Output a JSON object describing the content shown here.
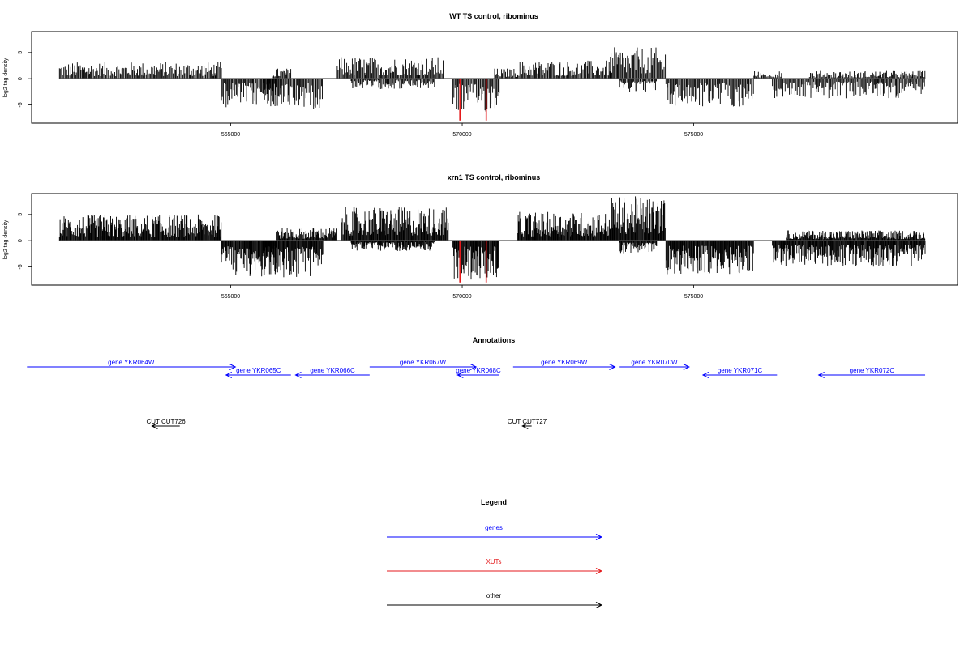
{
  "chart_data": [
    {
      "type": "bar",
      "title": "WT TS control, ribominus",
      "xlabel": "",
      "ylabel": "log2 tag density",
      "xlim": [
        560700,
        580700
      ],
      "ylim": [
        -8.5,
        9
      ],
      "x_ticks": [
        565000,
        570000,
        575000
      ],
      "y_ticks": [
        5,
        0,
        -5
      ],
      "x_tick_labels": [
        "565000",
        "570000",
        "575000"
      ],
      "y_tick_labels": [
        "5",
        "0",
        "-5"
      ],
      "grid": false,
      "signal_profile": [
        {
          "start": 561300,
          "end": 564800,
          "strand": "plus",
          "max": 3.2
        },
        {
          "start": 564800,
          "end": 566000,
          "strand": "minus",
          "max": 5.5
        },
        {
          "start": 565900,
          "end": 566300,
          "strand": "plus",
          "max": 2.0
        },
        {
          "start": 565700,
          "end": 567000,
          "strand": "minus",
          "max": 5.8
        },
        {
          "start": 567300,
          "end": 569600,
          "strand": "plus",
          "max": 4.2
        },
        {
          "start": 567600,
          "end": 569400,
          "strand": "minus",
          "max": 2.0
        },
        {
          "start": 569800,
          "end": 570800,
          "strand": "minus",
          "max": 6.5
        },
        {
          "start": 570700,
          "end": 571200,
          "strand": "plus",
          "max": 2.0
        },
        {
          "start": 571200,
          "end": 573200,
          "strand": "plus",
          "max": 3.5
        },
        {
          "start": 573200,
          "end": 574400,
          "strand": "plus",
          "max": 6.0
        },
        {
          "start": 573400,
          "end": 574200,
          "strand": "minus",
          "max": 2.5
        },
        {
          "start": 574400,
          "end": 576300,
          "strand": "minus",
          "max": 5.5
        },
        {
          "start": 576300,
          "end": 576900,
          "strand": "plus",
          "max": 1.5
        },
        {
          "start": 576700,
          "end": 580000,
          "strand": "minus",
          "max": 3.8
        },
        {
          "start": 577500,
          "end": 580000,
          "strand": "plus",
          "max": 1.5
        }
      ],
      "highlights": [
        {
          "x": 569950,
          "y": -8,
          "color": "#e41a1c"
        },
        {
          "x": 570520,
          "y": -8,
          "color": "#e41a1c"
        }
      ]
    },
    {
      "type": "bar",
      "title": "xrn1 TS control, ribominus",
      "xlabel": "",
      "ylabel": "log2 tag density",
      "xlim": [
        560700,
        580700
      ],
      "ylim": [
        -8.5,
        9
      ],
      "x_ticks": [
        565000,
        570000,
        575000
      ],
      "y_ticks": [
        5,
        0,
        -5
      ],
      "x_tick_labels": [
        "565000",
        "570000",
        "575000"
      ],
      "y_tick_labels": [
        "5",
        "0",
        "-5"
      ],
      "grid": false,
      "signal_profile": [
        {
          "start": 561300,
          "end": 564800,
          "strand": "plus",
          "max": 5.0
        },
        {
          "start": 564800,
          "end": 566000,
          "strand": "minus",
          "max": 7.0
        },
        {
          "start": 565700,
          "end": 567000,
          "strand": "minus",
          "max": 7.2
        },
        {
          "start": 566000,
          "end": 567300,
          "strand": "plus",
          "max": 2.5
        },
        {
          "start": 567400,
          "end": 569700,
          "strand": "plus",
          "max": 6.5
        },
        {
          "start": 567600,
          "end": 569400,
          "strand": "minus",
          "max": 2.0
        },
        {
          "start": 569800,
          "end": 570800,
          "strand": "minus",
          "max": 7.5
        },
        {
          "start": 571200,
          "end": 573200,
          "strand": "plus",
          "max": 5.5
        },
        {
          "start": 573200,
          "end": 574400,
          "strand": "plus",
          "max": 8.5
        },
        {
          "start": 573400,
          "end": 574200,
          "strand": "minus",
          "max": 2.5
        },
        {
          "start": 574400,
          "end": 576300,
          "strand": "minus",
          "max": 6.5
        },
        {
          "start": 576700,
          "end": 580000,
          "strand": "minus",
          "max": 5.0
        },
        {
          "start": 577000,
          "end": 580000,
          "strand": "plus",
          "max": 2.0
        }
      ],
      "highlights": [
        {
          "x": 569950,
          "y": -8,
          "color": "#e41a1c"
        },
        {
          "x": 570520,
          "y": -8,
          "color": "#e41a1c"
        }
      ]
    }
  ],
  "annotations": {
    "title": "Annotations",
    "genes": [
      {
        "label": "gene YKR064W",
        "start": 560600,
        "end": 565100,
        "strand": "+",
        "row": 0
      },
      {
        "label": "gene YKR065C",
        "start": 564900,
        "end": 566300,
        "strand": "-",
        "row": 1
      },
      {
        "label": "gene YKR066C",
        "start": 566400,
        "end": 568000,
        "strand": "-",
        "row": 1
      },
      {
        "label": "gene YKR067W",
        "start": 568000,
        "end": 570300,
        "strand": "+",
        "row": 0
      },
      {
        "label": "gene YKR068C",
        "start": 569900,
        "end": 570800,
        "strand": "-",
        "row": 1
      },
      {
        "label": "gene YKR069W",
        "start": 571100,
        "end": 573300,
        "strand": "+",
        "row": 0
      },
      {
        "label": "gene YKR070W",
        "start": 573400,
        "end": 574900,
        "strand": "+",
        "row": 0
      },
      {
        "label": "gene YKR071C",
        "start": 575200,
        "end": 576800,
        "strand": "-",
        "row": 1
      },
      {
        "label": "gene YKR072C",
        "start": 577700,
        "end": 580000,
        "strand": "-",
        "row": 1
      }
    ],
    "others": [
      {
        "label": "CUT CUT726",
        "start": 563300,
        "end": 563900,
        "strand": "-"
      },
      {
        "label": "CUT CUT727",
        "start": 571300,
        "end": 571500,
        "strand": "-"
      }
    ]
  },
  "legend": {
    "title": "Legend",
    "items": [
      {
        "label": "genes",
        "color": "#0000ff"
      },
      {
        "label": "XUTs",
        "color": "#e41a1c"
      },
      {
        "label": "other",
        "color": "#000000"
      }
    ]
  }
}
